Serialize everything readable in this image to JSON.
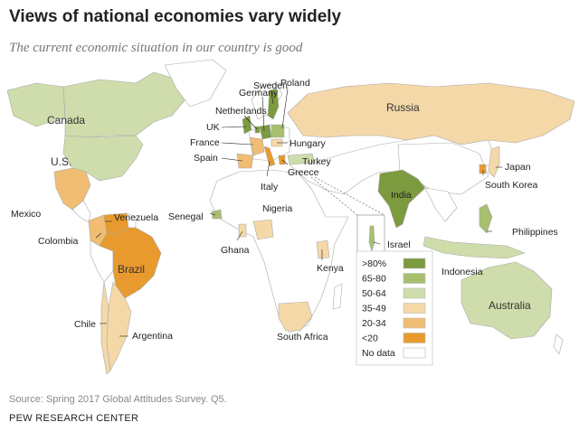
{
  "title": "Views of national economies vary widely",
  "subtitle": "The current economic situation in our country is good",
  "source": "Source: Spring 2017 Global Attitudes Survey. Q5.",
  "organization": "PEW RESEARCH CENTER",
  "colors": {
    "gt80": "#7c9a3e",
    "r65_80": "#a7bf6e",
    "r50_64": "#cfdcab",
    "r35_49": "#f5d8a8",
    "r20_34": "#f0bd73",
    "lt20": "#e99a2e",
    "nodata": "#ffffff"
  },
  "legend": [
    {
      "label": ">80%",
      "color": "#7c9a3e"
    },
    {
      "label": "65-80",
      "color": "#a7bf6e"
    },
    {
      "label": "50-64",
      "color": "#cfdcab"
    },
    {
      "label": "35-49",
      "color": "#f5d8a8"
    },
    {
      "label": "20-34",
      "color": "#f0bd73"
    },
    {
      "label": "<20",
      "color": "#e99a2e"
    },
    {
      "label": "No data",
      "color": "#ffffff"
    }
  ],
  "labels": {
    "canada": "Canada",
    "us": "U.S.",
    "mexico": "Mexico",
    "venezuela": "Venezuela",
    "colombia": "Colombia",
    "brazil": "Brazil",
    "chile": "Chile",
    "argentina": "Argentina",
    "sweden": "Sweden",
    "poland": "Poland",
    "germany": "Germany",
    "netherlands": "Netherlands",
    "uk": "UK",
    "france": "France",
    "hungary": "Hungary",
    "spain": "Spain",
    "turkey": "Turkey",
    "italy": "Italy",
    "greece": "Greece",
    "russia": "Russia",
    "japan": "Japan",
    "south_korea": "South Korea",
    "india": "India",
    "senegal": "Senegal",
    "nigeria": "Nigeria",
    "ghana": "Ghana",
    "israel": "Israel",
    "philippines": "Philippines",
    "indonesia": "Indonesia",
    "kenya": "Kenya",
    "australia": "Australia",
    "south_africa": "South Africa"
  }
}
